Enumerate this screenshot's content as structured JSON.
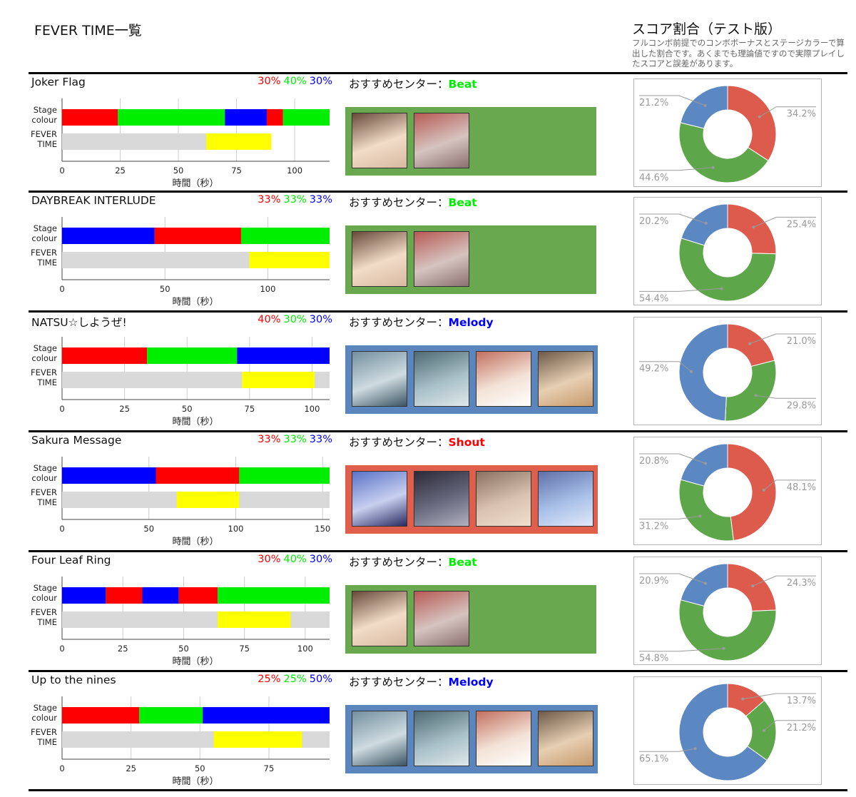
{
  "page": {
    "title": "FEVER TIME一覧",
    "score_title": "スコア割合（テスト版）",
    "score_note": "フルコンボ前提でのコンボボーナスとステージカラーで算出した割合です。あくまでも理論値ですので実際プレイしたスコアと誤差があります。"
  },
  "labels": {
    "recommend": "おすすめセンター：",
    "stage_colour_1": "Stage",
    "stage_colour_2": "colour",
    "fever_1": "FEVER",
    "fever_2": "TIME",
    "xaxis_title": "時間（秒）"
  },
  "colors": {
    "red": "#ff0000",
    "green": "#00ee00",
    "blue": "#0000ff",
    "fever": "#ffff00",
    "fever_track": "#d9d9d9",
    "beat": "#6aa84f",
    "melody": "#5a86bd",
    "shout": "#e05f4c",
    "donut_red": "#dd5b4c",
    "donut_green": "#5ea64a",
    "donut_blue": "#5b88c2"
  },
  "chart_data": [
    {
      "type": "bar",
      "song": "Joker Flag",
      "percent": {
        "red": "30%",
        "green": "40%",
        "blue": "30%"
      },
      "recommend_type": "Beat",
      "recommend_color": "green",
      "portrait_count": 2,
      "xlim": [
        0,
        115
      ],
      "xticks": [
        0,
        25,
        50,
        75,
        100
      ],
      "stage_colour": [
        {
          "color": "red",
          "start": 0,
          "end": 24
        },
        {
          "color": "green",
          "start": 24,
          "end": 70
        },
        {
          "color": "blue",
          "start": 70,
          "end": 88
        },
        {
          "color": "red",
          "start": 88,
          "end": 95
        },
        {
          "color": "green",
          "start": 95,
          "end": 115
        }
      ],
      "track_end": 90,
      "fever": [
        62,
        90
      ],
      "score_ratio": {
        "red": "34.2%",
        "green": "44.6%",
        "blue": "21.2%"
      }
    },
    {
      "type": "bar",
      "song": "DAYBREAK INTERLUDE",
      "percent": {
        "red": "33%",
        "green": "33%",
        "blue": "33%"
      },
      "recommend_type": "Beat",
      "recommend_color": "green",
      "portrait_count": 2,
      "xlim": [
        0,
        130
      ],
      "xticks": [
        0,
        50,
        100
      ],
      "stage_colour": [
        {
          "color": "blue",
          "start": 0,
          "end": 45
        },
        {
          "color": "red",
          "start": 45,
          "end": 87
        },
        {
          "color": "green",
          "start": 87,
          "end": 130
        }
      ],
      "track_end": 130,
      "fever": [
        91,
        130
      ],
      "score_ratio": {
        "red": "25.4%",
        "green": "54.4%",
        "blue": "20.2%"
      }
    },
    {
      "type": "bar",
      "song": "NATSU☆しようぜ!",
      "percent": {
        "red": "40%",
        "green": "30%",
        "blue": "30%"
      },
      "recommend_type": "Melody",
      "recommend_color": "blue",
      "portrait_count": 4,
      "xlim": [
        0,
        107
      ],
      "xticks": [
        0,
        25,
        50,
        75,
        100
      ],
      "stage_colour": [
        {
          "color": "red",
          "start": 0,
          "end": 34
        },
        {
          "color": "green",
          "start": 34,
          "end": 70
        },
        {
          "color": "blue",
          "start": 70,
          "end": 107
        }
      ],
      "track_end": 107,
      "fever": [
        72,
        101
      ],
      "score_ratio": {
        "red": "21.0%",
        "green": "29.8%",
        "blue": "49.2%"
      }
    },
    {
      "type": "bar",
      "song": "Sakura Message",
      "percent": {
        "red": "33%",
        "green": "33%",
        "blue": "33%"
      },
      "recommend_type": "Shout",
      "recommend_color": "red",
      "portrait_count": 4,
      "xlim": [
        0,
        154
      ],
      "xticks": [
        0,
        50,
        100,
        150
      ],
      "stage_colour": [
        {
          "color": "blue",
          "start": 0,
          "end": 54
        },
        {
          "color": "red",
          "start": 54,
          "end": 102
        },
        {
          "color": "green",
          "start": 102,
          "end": 154
        }
      ],
      "track_end": 154,
      "fever": [
        66,
        102
      ],
      "score_ratio": {
        "red": "48.1%",
        "green": "31.2%",
        "blue": "20.8%"
      }
    },
    {
      "type": "bar",
      "song": "Four Leaf Ring",
      "percent": {
        "red": "30%",
        "green": "40%",
        "blue": "30%"
      },
      "recommend_type": "Beat",
      "recommend_color": "green",
      "portrait_count": 2,
      "xlim": [
        0,
        110
      ],
      "xticks": [
        0,
        25,
        50,
        75,
        100
      ],
      "stage_colour": [
        {
          "color": "blue",
          "start": 0,
          "end": 18
        },
        {
          "color": "red",
          "start": 18,
          "end": 33
        },
        {
          "color": "blue",
          "start": 33,
          "end": 48
        },
        {
          "color": "red",
          "start": 48,
          "end": 64
        },
        {
          "color": "green",
          "start": 64,
          "end": 110
        }
      ],
      "track_end": 110,
      "fever": [
        64,
        94
      ],
      "score_ratio": {
        "red": "24.3%",
        "green": "54.8%",
        "blue": "20.9%"
      }
    },
    {
      "type": "bar",
      "song": "Up to the nines",
      "percent": {
        "red": "25%",
        "green": "25%",
        "blue": "50%"
      },
      "recommend_type": "Melody",
      "recommend_color": "blue",
      "portrait_count": 4,
      "xlim": [
        0,
        97
      ],
      "xticks": [
        0,
        25,
        50,
        75
      ],
      "stage_colour": [
        {
          "color": "red",
          "start": 0,
          "end": 28
        },
        {
          "color": "green",
          "start": 28,
          "end": 51
        },
        {
          "color": "blue",
          "start": 51,
          "end": 97
        }
      ],
      "track_end": 97,
      "fever": [
        55,
        87
      ],
      "score_ratio": {
        "red": "13.7%",
        "green": "21.2%",
        "blue": "65.1%"
      }
    }
  ]
}
